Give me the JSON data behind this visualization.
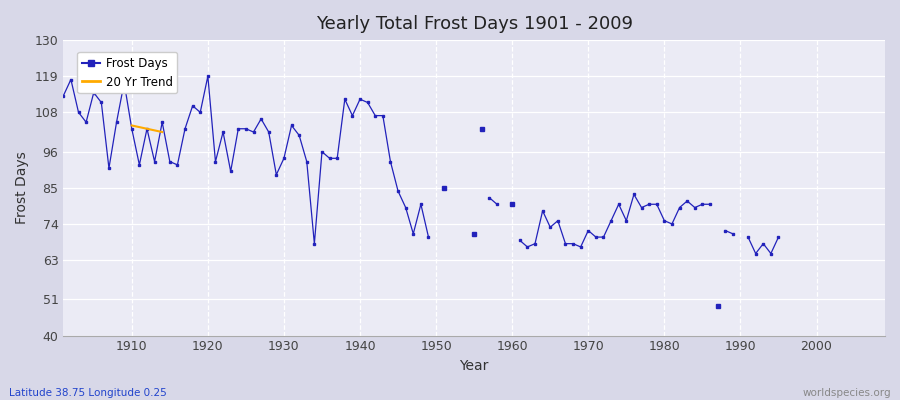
{
  "title": "Yearly Total Frost Days 1901 - 2009",
  "xlabel": "Year",
  "ylabel": "Frost Days",
  "bottom_left_label": "Latitude 38.75 Longitude 0.25",
  "bottom_right_label": "worldspecies.org",
  "ylim": [
    40,
    130
  ],
  "xlim": [
    1901,
    2009
  ],
  "yticks": [
    40,
    51,
    63,
    74,
    85,
    96,
    108,
    119,
    130
  ],
  "xticks": [
    1910,
    1920,
    1930,
    1940,
    1950,
    1960,
    1970,
    1980,
    1990,
    2000
  ],
  "line_color": "#2222bb",
  "trend_color": "#ffaa00",
  "plot_bg": "#ebebf5",
  "frost_data": [
    [
      1901,
      113
    ],
    [
      1902,
      118
    ],
    [
      1903,
      108
    ],
    [
      1904,
      105
    ],
    [
      1905,
      114
    ],
    [
      1906,
      111
    ],
    [
      1907,
      91
    ],
    [
      1908,
      105
    ],
    [
      1909,
      117
    ],
    [
      1910,
      103
    ],
    [
      1911,
      92
    ],
    [
      1912,
      103
    ],
    [
      1913,
      93
    ],
    [
      1914,
      105
    ],
    [
      1915,
      93
    ],
    [
      1916,
      92
    ],
    [
      1917,
      103
    ],
    [
      1918,
      110
    ],
    [
      1919,
      108
    ],
    [
      1920,
      119
    ],
    [
      1921,
      93
    ],
    [
      1922,
      102
    ],
    [
      1923,
      90
    ],
    [
      1924,
      103
    ],
    [
      1925,
      103
    ],
    [
      1926,
      102
    ],
    [
      1927,
      106
    ],
    [
      1928,
      102
    ],
    [
      1929,
      89
    ],
    [
      1930,
      94
    ],
    [
      1931,
      104
    ],
    [
      1932,
      101
    ],
    [
      1933,
      93
    ],
    [
      1934,
      68
    ],
    [
      1935,
      96
    ],
    [
      1936,
      94
    ],
    [
      1937,
      94
    ],
    [
      1938,
      112
    ],
    [
      1939,
      107
    ],
    [
      1940,
      112
    ],
    [
      1941,
      111
    ],
    [
      1942,
      107
    ],
    [
      1943,
      107
    ],
    [
      1944,
      93
    ],
    [
      1945,
      84
    ],
    [
      1946,
      79
    ],
    [
      1947,
      71
    ],
    [
      1948,
      80
    ],
    [
      1949,
      70
    ],
    [
      1951,
      85
    ],
    [
      1955,
      71
    ],
    [
      1956,
      103
    ],
    [
      1957,
      82
    ],
    [
      1958,
      80
    ],
    [
      1960,
      80
    ],
    [
      1961,
      69
    ],
    [
      1962,
      67
    ],
    [
      1963,
      68
    ],
    [
      1964,
      78
    ],
    [
      1965,
      73
    ],
    [
      1966,
      75
    ],
    [
      1967,
      68
    ],
    [
      1968,
      68
    ],
    [
      1969,
      67
    ],
    [
      1970,
      72
    ],
    [
      1971,
      70
    ],
    [
      1972,
      70
    ],
    [
      1973,
      75
    ],
    [
      1974,
      80
    ],
    [
      1975,
      75
    ],
    [
      1976,
      83
    ],
    [
      1977,
      79
    ],
    [
      1978,
      80
    ],
    [
      1979,
      80
    ],
    [
      1980,
      75
    ],
    [
      1981,
      74
    ],
    [
      1982,
      79
    ],
    [
      1983,
      81
    ],
    [
      1984,
      79
    ],
    [
      1985,
      80
    ],
    [
      1986,
      80
    ],
    [
      1988,
      72
    ],
    [
      1989,
      71
    ],
    [
      1987,
      49
    ],
    [
      1991,
      70
    ],
    [
      1992,
      65
    ],
    [
      1993,
      68
    ],
    [
      1994,
      65
    ],
    [
      1995,
      70
    ]
  ],
  "connected_segments": [
    [
      1901,
      1902,
      1903,
      1904,
      1905,
      1906,
      1907,
      1908,
      1909,
      1910,
      1911,
      1912,
      1913,
      1914,
      1915,
      1916,
      1917,
      1918,
      1919,
      1920,
      1921,
      1922,
      1923,
      1924,
      1925,
      1926,
      1927,
      1928,
      1929,
      1930,
      1931,
      1932,
      1933,
      1934,
      1935,
      1936,
      1937,
      1938,
      1939,
      1940,
      1941,
      1942,
      1943,
      1944,
      1945,
      1946,
      1947,
      1948,
      1949
    ],
    [
      1957,
      1958
    ],
    [
      1961,
      1962,
      1963,
      1964,
      1965,
      1966,
      1967,
      1968,
      1969,
      1970,
      1971,
      1972,
      1973,
      1974,
      1975,
      1976,
      1977,
      1978,
      1979,
      1980,
      1981,
      1982,
      1983,
      1984,
      1985,
      1986
    ],
    [
      1988,
      1989
    ],
    [
      1991,
      1992,
      1993,
      1994,
      1995
    ]
  ],
  "isolated_years": [
    1951,
    1955,
    1956,
    1960,
    1987
  ],
  "trend_years": [
    1910,
    1911,
    1912,
    1913,
    1914
  ],
  "trend_values": [
    104,
    103.5,
    103,
    102.5,
    102
  ]
}
